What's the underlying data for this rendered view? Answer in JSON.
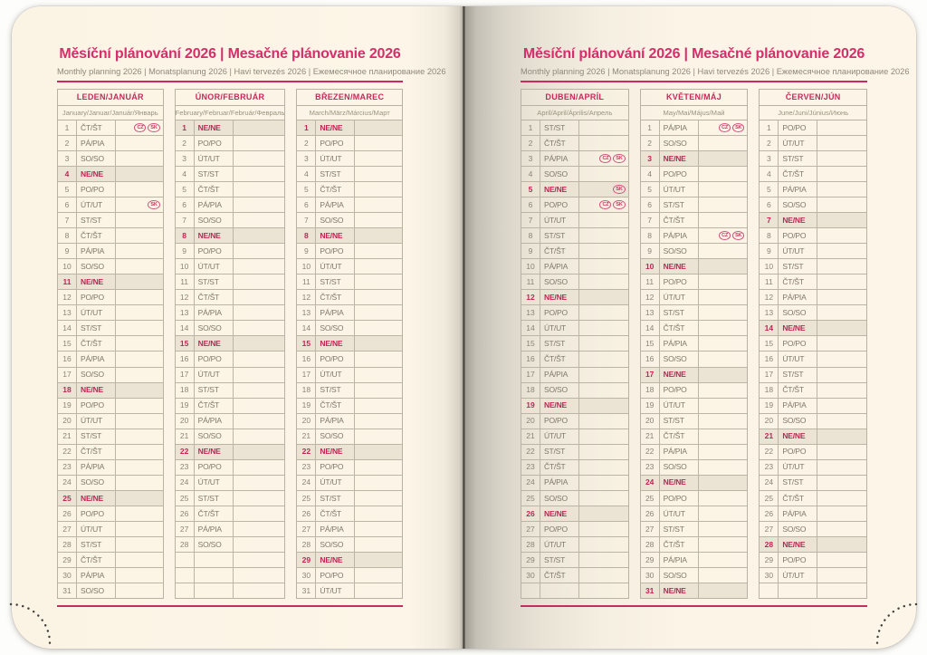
{
  "titles": {
    "title": "Měsíční plánování 2026 | Mesačné plánovanie 2026",
    "subtitle": "Monthly planning 2026 | Monatsplanung 2026 | Havi tervezés 2026 | Ежемесячное планирование 2026"
  },
  "colors": {
    "accent_crimson": "#c92a5f",
    "title_pink": "#d42e6b",
    "page_cream": "#fdf6e8",
    "grid_line": "#b9b1a1",
    "day_text": "#7f786a",
    "sunday_text": "#c22455",
    "sunday_row_bg": "#ebe4d5",
    "badge_pink": "#cb3566"
  },
  "pages": [
    {
      "side": "left",
      "months": [
        {
          "header": "LEDEN/JANUÁR",
          "subheader": "January/Januar/Január/Январь",
          "days": [
            "ČT/ŠT",
            "PÁ/PIA",
            "SO/SO",
            "NE/NE",
            "PO/PO",
            "ÚT/UT",
            "ST/ST",
            "ČT/ŠT",
            "PÁ/PIA",
            "SO/SO",
            "NE/NE",
            "PO/PO",
            "ÚT/UT",
            "ST/ST",
            "ČT/ŠT",
            "PÁ/PIA",
            "SO/SO",
            "NE/NE",
            "PO/PO",
            "ÚT/UT",
            "ST/ST",
            "ČT/ŠT",
            "PÁ/PIA",
            "SO/SO",
            "NE/NE",
            "PO/PO",
            "ÚT/UT",
            "ST/ST",
            "ČT/ŠT",
            "PÁ/PIA",
            "SO/SO"
          ],
          "badges": {
            "1": [
              "CZ",
              "SK"
            ],
            "6": [
              "SK"
            ]
          }
        },
        {
          "header": "ÚNOR/FEBRUÁR",
          "subheader": "February/Februar/Február/Февраль",
          "days": [
            "NE/NE",
            "PO/PO",
            "ÚT/UT",
            "ST/ST",
            "ČT/ŠT",
            "PÁ/PIA",
            "SO/SO",
            "NE/NE",
            "PO/PO",
            "ÚT/UT",
            "ST/ST",
            "ČT/ŠT",
            "PÁ/PIA",
            "SO/SO",
            "NE/NE",
            "PO/PO",
            "ÚT/UT",
            "ST/ST",
            "ČT/ŠT",
            "PÁ/PIA",
            "SO/SO",
            "NE/NE",
            "PO/PO",
            "ÚT/UT",
            "ST/ST",
            "ČT/ŠT",
            "PÁ/PIA",
            "SO/SO",
            "",
            "",
            ""
          ],
          "badges": {}
        },
        {
          "header": "BŘEZEN/MAREC",
          "subheader": "March/März/Március/Март",
          "days": [
            "NE/NE",
            "PO/PO",
            "ÚT/UT",
            "ST/ST",
            "ČT/ŠT",
            "PÁ/PIA",
            "SO/SO",
            "NE/NE",
            "PO/PO",
            "ÚT/UT",
            "ST/ST",
            "ČT/ŠT",
            "PÁ/PIA",
            "SO/SO",
            "NE/NE",
            "PO/PO",
            "ÚT/UT",
            "ST/ST",
            "ČT/ŠT",
            "PÁ/PIA",
            "SO/SO",
            "NE/NE",
            "PO/PO",
            "ÚT/UT",
            "ST/ST",
            "ČT/ŠT",
            "PÁ/PIA",
            "SO/SO",
            "NE/NE",
            "PO/PO",
            "ÚT/UT"
          ],
          "badges": {}
        }
      ]
    },
    {
      "side": "right",
      "months": [
        {
          "header": "DUBEN/APRÍL",
          "subheader": "April/April/Április/Апрель",
          "days": [
            "ST/ST",
            "ČT/ŠT",
            "PÁ/PIA",
            "SO/SO",
            "NE/NE",
            "PO/PO",
            "ÚT/UT",
            "ST/ST",
            "ČT/ŠT",
            "PÁ/PIA",
            "SO/SO",
            "NE/NE",
            "PO/PO",
            "ÚT/UT",
            "ST/ST",
            "ČT/ŠT",
            "PÁ/PIA",
            "SO/SO",
            "NE/NE",
            "PO/PO",
            "ÚT/UT",
            "ST/ST",
            "ČT/ŠT",
            "PÁ/PIA",
            "SO/SO",
            "NE/NE",
            "PO/PO",
            "ÚT/UT",
            "ST/ST",
            "ČT/ŠT",
            ""
          ],
          "badges": {
            "3": [
              "CZ",
              "SK"
            ],
            "5": [
              "SK"
            ],
            "6": [
              "CZ",
              "SK"
            ]
          }
        },
        {
          "header": "KVĚTEN/MÁJ",
          "subheader": "May/Mai/Május/Май",
          "days": [
            "PÁ/PIA",
            "SO/SO",
            "NE/NE",
            "PO/PO",
            "ÚT/UT",
            "ST/ST",
            "ČT/ŠT",
            "PÁ/PIA",
            "SO/SO",
            "NE/NE",
            "PO/PO",
            "ÚT/UT",
            "ST/ST",
            "ČT/ŠT",
            "PÁ/PIA",
            "SO/SO",
            "NE/NE",
            "PO/PO",
            "ÚT/UT",
            "ST/ST",
            "ČT/ŠT",
            "PÁ/PIA",
            "SO/SO",
            "NE/NE",
            "PO/PO",
            "ÚT/UT",
            "ST/ST",
            "ČT/ŠT",
            "PÁ/PIA",
            "SO/SO",
            "NE/NE"
          ],
          "badges": {
            "1": [
              "CZ",
              "SK"
            ],
            "8": [
              "CZ",
              "SK"
            ]
          }
        },
        {
          "header": "ČERVEN/JÚN",
          "subheader": "June/Juni/Június/Июнь",
          "days": [
            "PO/PO",
            "ÚT/UT",
            "ST/ST",
            "ČT/ŠT",
            "PÁ/PIA",
            "SO/SO",
            "NE/NE",
            "PO/PO",
            "ÚT/UT",
            "ST/ST",
            "ČT/ŠT",
            "PÁ/PIA",
            "SO/SO",
            "NE/NE",
            "PO/PO",
            "ÚT/UT",
            "ST/ST",
            "ČT/ŠT",
            "PÁ/PIA",
            "SO/SO",
            "NE/NE",
            "PO/PO",
            "ÚT/UT",
            "ST/ST",
            "ČT/ŠT",
            "PÁ/PIA",
            "SO/SO",
            "NE/NE",
            "PO/PO",
            "ÚT/UT",
            ""
          ],
          "badges": {}
        }
      ]
    }
  ]
}
